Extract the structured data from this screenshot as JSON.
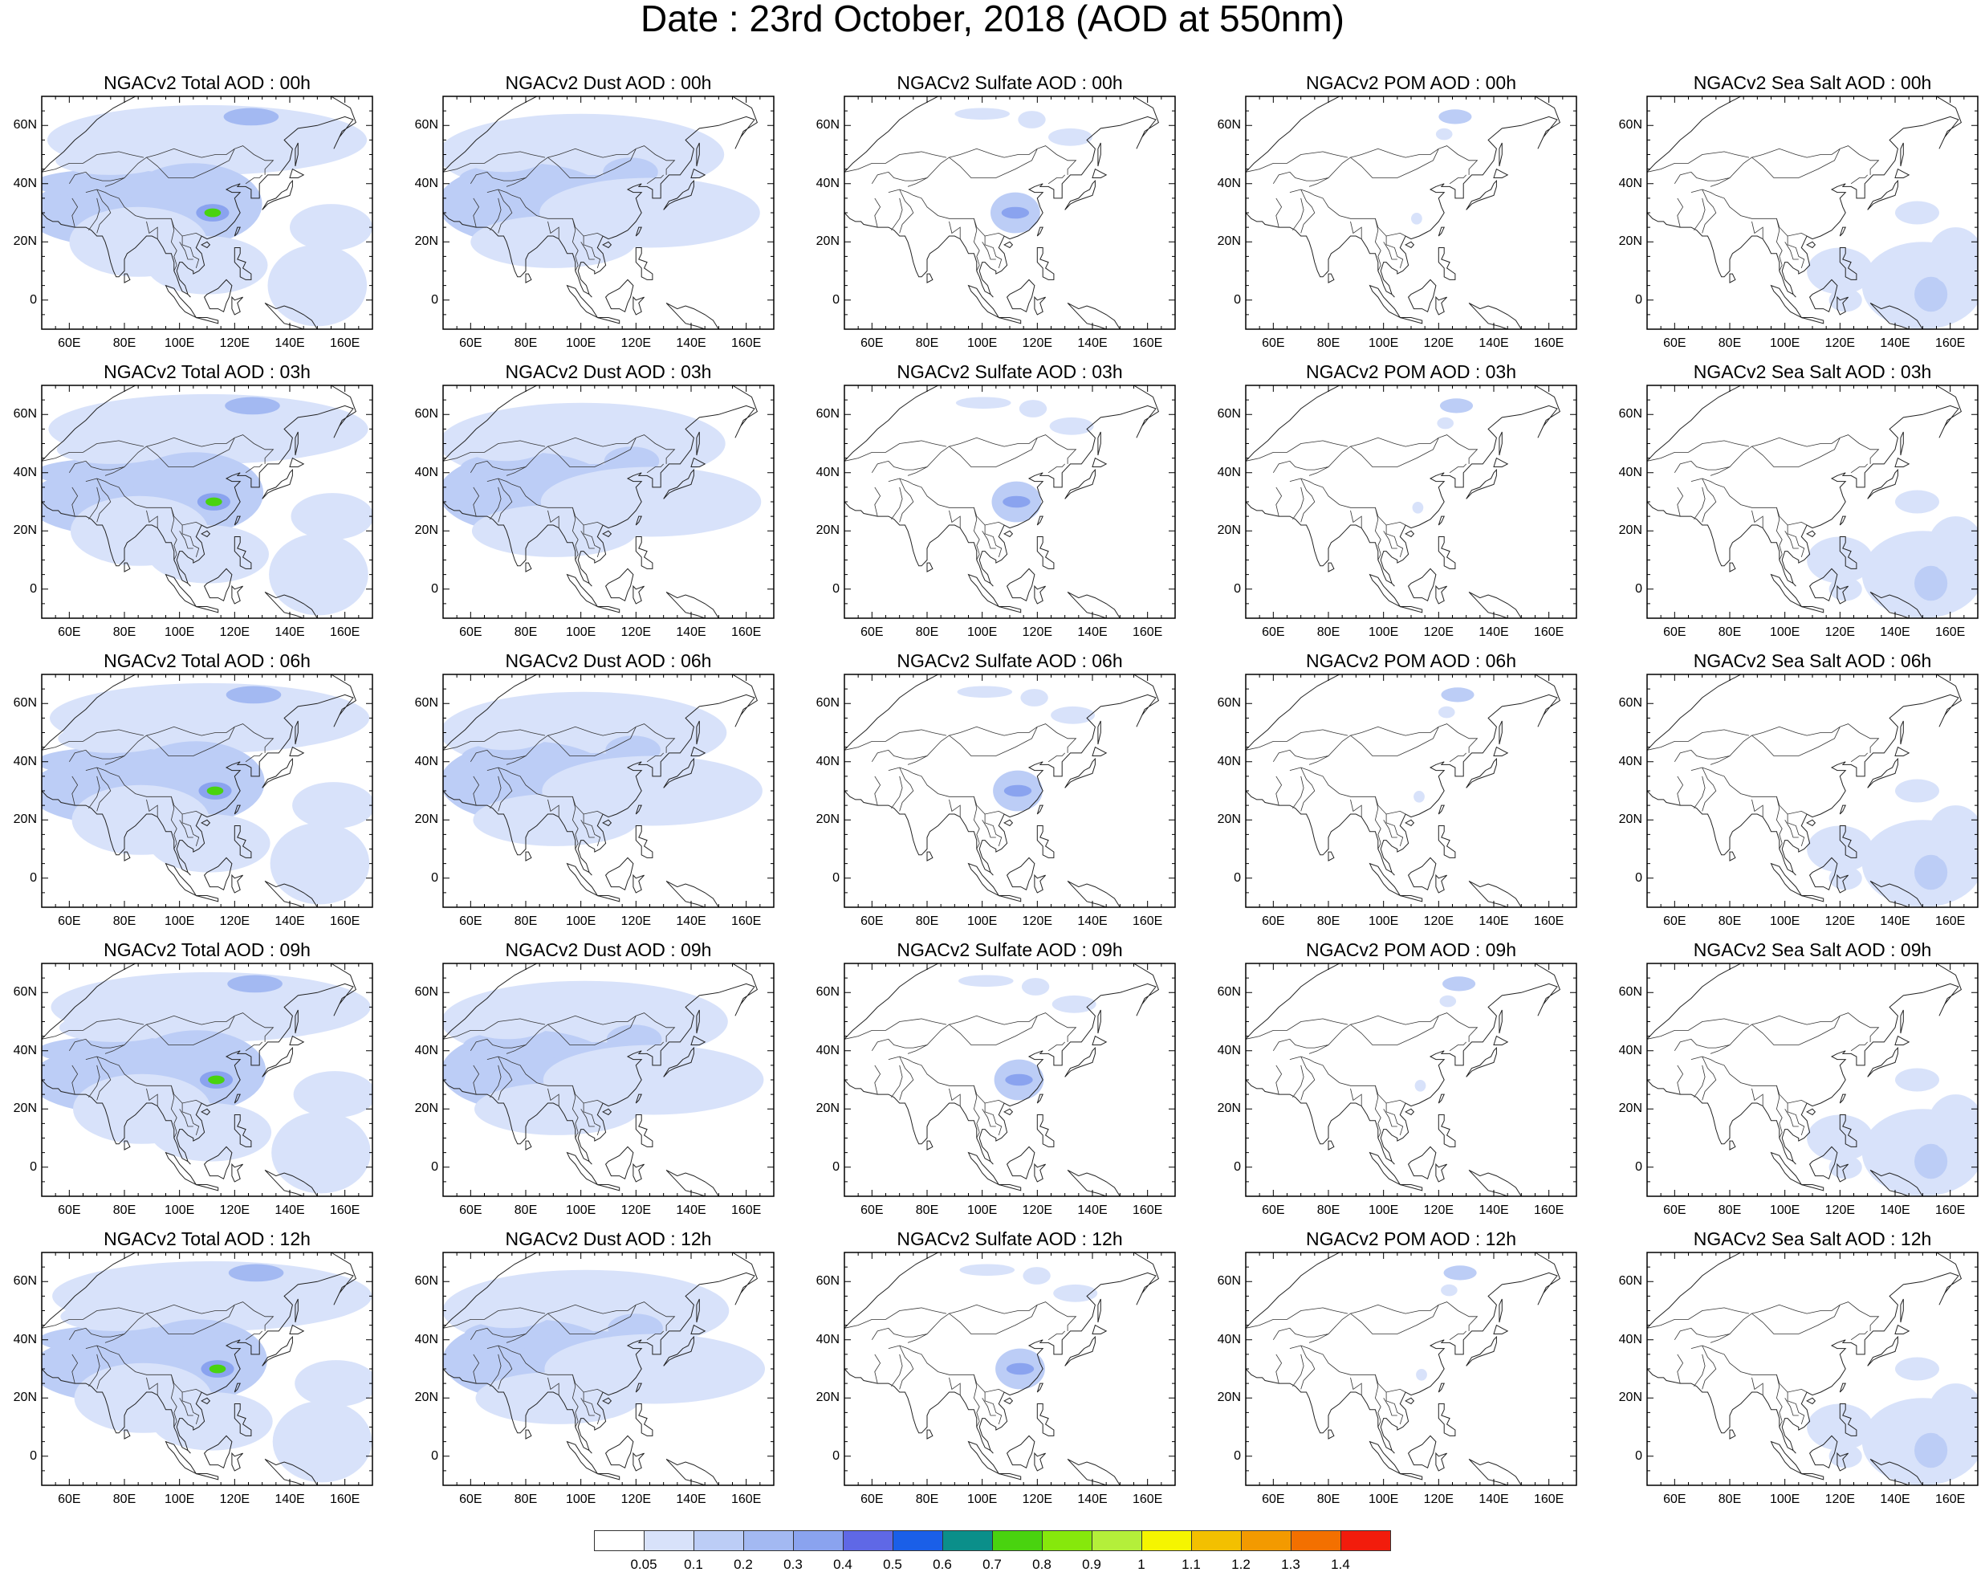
{
  "title": "Date : 23rd October, 2018 (AOD at 550nm)",
  "lat_ticks": [
    "60N",
    "40N",
    "20N",
    "0"
  ],
  "lon_ticks": [
    "60E",
    "80E",
    "100E",
    "120E",
    "140E",
    "160E"
  ],
  "map_extent": {
    "lon": [
      50,
      170
    ],
    "lat": [
      -10,
      70
    ]
  },
  "panels": [
    [
      {
        "title": "NGACv2 Total AOD : 00h",
        "species": "total",
        "hour": "00h"
      },
      {
        "title": "NGACv2 Dust AOD : 00h",
        "species": "dust",
        "hour": "00h"
      },
      {
        "title": "NGACv2 Sulfate AOD : 00h",
        "species": "sulfate",
        "hour": "00h"
      },
      {
        "title": "NGACv2 POM AOD : 00h",
        "species": "pom",
        "hour": "00h"
      },
      {
        "title": "NGACv2 Sea Salt AOD : 00h",
        "species": "seasalt",
        "hour": "00h"
      }
    ],
    [
      {
        "title": "NGACv2 Total AOD : 03h",
        "species": "total",
        "hour": "03h"
      },
      {
        "title": "NGACv2 Dust AOD : 03h",
        "species": "dust",
        "hour": "03h"
      },
      {
        "title": "NGACv2 Sulfate AOD : 03h",
        "species": "sulfate",
        "hour": "03h"
      },
      {
        "title": "NGACv2 POM AOD : 03h",
        "species": "pom",
        "hour": "03h"
      },
      {
        "title": "NGACv2 Sea Salt AOD : 03h",
        "species": "seasalt",
        "hour": "03h"
      }
    ],
    [
      {
        "title": "NGACv2 Total AOD : 06h",
        "species": "total",
        "hour": "06h"
      },
      {
        "title": "NGACv2 Dust AOD : 06h",
        "species": "dust",
        "hour": "06h"
      },
      {
        "title": "NGACv2 Sulfate AOD : 06h",
        "species": "sulfate",
        "hour": "06h"
      },
      {
        "title": "NGACv2 POM AOD : 06h",
        "species": "pom",
        "hour": "06h"
      },
      {
        "title": "NGACv2 Sea Salt AOD : 06h",
        "species": "seasalt",
        "hour": "06h"
      }
    ],
    [
      {
        "title": "NGACv2 Total AOD : 09h",
        "species": "total",
        "hour": "09h"
      },
      {
        "title": "NGACv2 Dust AOD : 09h",
        "species": "dust",
        "hour": "09h"
      },
      {
        "title": "NGACv2 Sulfate AOD : 09h",
        "species": "sulfate",
        "hour": "09h"
      },
      {
        "title": "NGACv2 POM AOD : 09h",
        "species": "pom",
        "hour": "09h"
      },
      {
        "title": "NGACv2 Sea Salt  AOD : 09h",
        "species": "seasalt",
        "hour": "09h"
      }
    ],
    [
      {
        "title": "NGACv2 Total AOD  : 12h",
        "species": "total",
        "hour": "12h"
      },
      {
        "title": "NGACv2 Dust AOD : 12h",
        "species": "dust",
        "hour": "12h"
      },
      {
        "title": "NGACv2 Sulfate AOD : 12h",
        "species": "sulfate",
        "hour": "12h"
      },
      {
        "title": "NGACv2 POM  AOD : 12h",
        "species": "pom",
        "hour": "12h"
      },
      {
        "title": "NGACv2 Sea Salt  AOD : 12h",
        "species": "seasalt",
        "hour": "12h"
      }
    ]
  ],
  "colorbar": {
    "labels": [
      "0.05",
      "0.1",
      "0.2",
      "0.3",
      "0.4",
      "0.5",
      "0.6",
      "0.7",
      "0.8",
      "0.9",
      "1",
      "1.1",
      "1.2",
      "1.3",
      "1.4"
    ],
    "colors": [
      "#ffffff",
      "#d8e2fa",
      "#bccdf6",
      "#a3b9f2",
      "#8aa3ef",
      "#5f68e6",
      "#1a5fe8",
      "#0b8f8a",
      "#49d30f",
      "#86e80c",
      "#b4ef3a",
      "#f5f500",
      "#f3c000",
      "#f39a00",
      "#f37000",
      "#f21c0c"
    ]
  }
}
